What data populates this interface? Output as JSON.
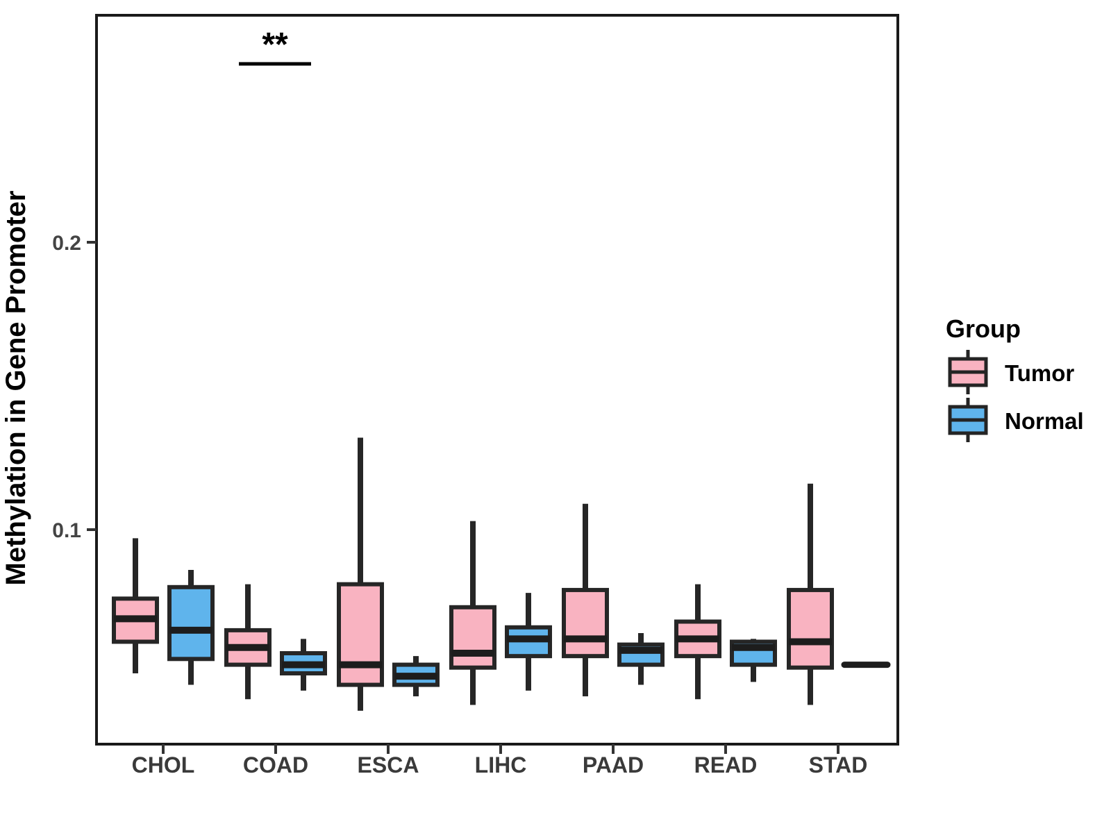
{
  "figure": {
    "background": "#FFFFFF"
  },
  "legend": {
    "title": "Group",
    "items": [
      {
        "label": "Tumor",
        "color": "#F9B3C1"
      },
      {
        "label": "Normal",
        "color": "#5FB4EC"
      }
    ]
  },
  "chart_data": {
    "type": "boxplot",
    "title": "",
    "xlabel": "",
    "ylabel": "Methylation in Gene Promoter",
    "categories": [
      "CHOL",
      "COAD",
      "ESCA",
      "LIHC",
      "PAAD",
      "READ",
      "STAD"
    ],
    "yticks": [
      0.1,
      0.2
    ],
    "ylim": [
      0.025,
      0.28
    ],
    "grid": false,
    "legend_position": "right",
    "series": [
      {
        "name": "Tumor",
        "color": "#F9B3C1",
        "boxes": [
          {
            "lo": 0.05,
            "q1": 0.061,
            "med": 0.069,
            "q3": 0.076,
            "hi": 0.097
          },
          {
            "lo": 0.041,
            "q1": 0.053,
            "med": 0.059,
            "q3": 0.065,
            "hi": 0.081
          },
          {
            "lo": 0.037,
            "q1": 0.046,
            "med": 0.053,
            "q3": 0.081,
            "hi": 0.132
          },
          {
            "lo": 0.039,
            "q1": 0.052,
            "med": 0.057,
            "q3": 0.073,
            "hi": 0.103
          },
          {
            "lo": 0.042,
            "q1": 0.056,
            "med": 0.062,
            "q3": 0.079,
            "hi": 0.109
          },
          {
            "lo": 0.041,
            "q1": 0.056,
            "med": 0.062,
            "q3": 0.068,
            "hi": 0.081
          },
          {
            "lo": 0.039,
            "q1": 0.052,
            "med": 0.061,
            "q3": 0.079,
            "hi": 0.116
          }
        ]
      },
      {
        "name": "Normal",
        "color": "#5FB4EC",
        "boxes": [
          {
            "lo": 0.046,
            "q1": 0.055,
            "med": 0.065,
            "q3": 0.08,
            "hi": 0.086
          },
          {
            "lo": 0.044,
            "q1": 0.05,
            "med": 0.053,
            "q3": 0.057,
            "hi": 0.062
          },
          {
            "lo": 0.042,
            "q1": 0.046,
            "med": 0.049,
            "q3": 0.053,
            "hi": 0.056
          },
          {
            "lo": 0.044,
            "q1": 0.056,
            "med": 0.062,
            "q3": 0.066,
            "hi": 0.078
          },
          {
            "lo": 0.046,
            "q1": 0.053,
            "med": 0.058,
            "q3": 0.06,
            "hi": 0.064
          },
          {
            "lo": 0.047,
            "q1": 0.053,
            "med": 0.059,
            "q3": 0.061,
            "hi": 0.062
          },
          {
            "lo": 0.053,
            "q1": 0.053,
            "med": 0.053,
            "q3": 0.053,
            "hi": 0.053
          }
        ]
      }
    ],
    "annotations": [
      {
        "type": "significance",
        "label": "**",
        "category": "COAD"
      }
    ]
  }
}
